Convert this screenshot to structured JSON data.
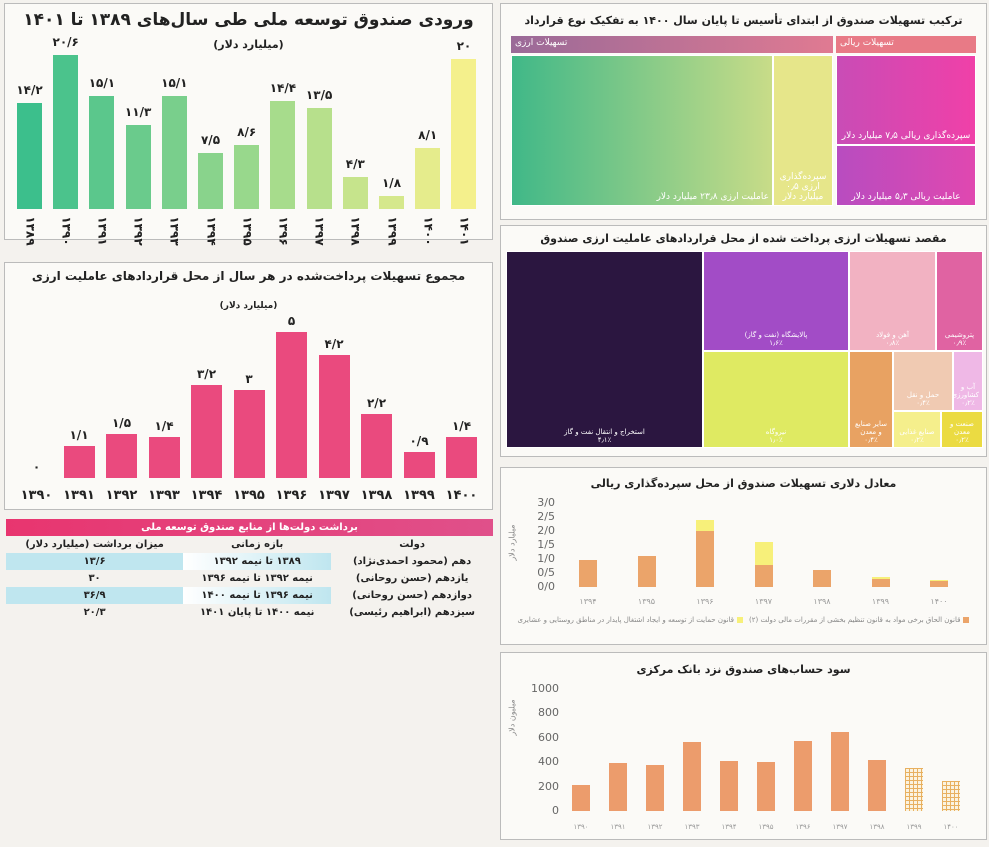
{
  "chart_data": [
    {
      "type": "bar",
      "title": "ورودی صندوق توسعه ملی طی سال‌های ۱۳۸۹ تا ۱۴۰۱",
      "subtitle": "(میلیارد دلار)",
      "categories": [
        "۱۳۸۹",
        "۱۳۹۰",
        "۱۳۹۱",
        "۱۳۹۲",
        "۱۳۹۳",
        "۱۳۹۴",
        "۱۳۹۵",
        "۱۳۹۶",
        "۱۳۹۷",
        "۱۳۹۸",
        "۱۳۹۹",
        "۱۴۰۰",
        "۱۴۰۱"
      ],
      "values": [
        14.2,
        20.6,
        15.1,
        11.3,
        15.1,
        7.5,
        8.6,
        14.4,
        13.5,
        4.3,
        1.8,
        8.1,
        20
      ],
      "labels": [
        "۱۴/۲",
        "۲۰/۶",
        "۱۵/۱",
        "۱۱/۳",
        "۱۵/۱",
        "۷/۵",
        "۸/۶",
        "۱۴/۴",
        "۱۳/۵",
        "۴/۳",
        "۱/۸",
        "۸/۱",
        "۲۰"
      ],
      "colors": [
        "#3cbf8c",
        "#f4f08c"
      ]
    },
    {
      "type": "bar",
      "title": "مجموع تسهیلات پرداخت‌شده در هر سال از محل قراردادهای عاملیت ارزی",
      "subtitle": "(میلیارد دلار)",
      "categories": [
        "۱۳۹۰",
        "۱۳۹۱",
        "۱۳۹۲",
        "۱۳۹۳",
        "۱۳۹۴",
        "۱۳۹۵",
        "۱۳۹۶",
        "۱۳۹۷",
        "۱۳۹۸",
        "۱۳۹۹",
        "۱۴۰۰"
      ],
      "values": [
        0,
        1.1,
        1.5,
        1.4,
        3.2,
        3,
        5,
        4.2,
        2.2,
        0.9,
        1.4
      ],
      "labels": [
        "۰",
        "۱/۱",
        "۱/۵",
        "۱/۴",
        "۳/۲",
        "۳",
        "۵",
        "۴/۲",
        "۲/۲",
        "۰/۹",
        "۱/۴"
      ],
      "color": "#ea4a7e"
    },
    {
      "type": "treemap",
      "title": "ترکیب تسهیلات صندوق از ابتدای تأسیس تا پایان سال ۱۴۰۰ به تفکیک نوع قرارداد",
      "groups": [
        {
          "name": "تسهیلات ارزی",
          "items": [
            {
              "label": "عاملیت ارزی ۲۳٫۸ میلیارد دلار",
              "value": 23.8
            },
            {
              "label": "سپرده‌گذاری ارزی ۰٫۵ میلیارد دلار",
              "value": 0.5
            }
          ]
        },
        {
          "name": "تسهیلات ریالی",
          "items": [
            {
              "label": "سپرده‌گذاری ریالی ۷٫۵ میلیارد دلار",
              "value": 7.5
            },
            {
              "label": "عاملیت ریالی ۵٫۳ میلیارد دلار",
              "value": 5.3
            }
          ]
        }
      ]
    },
    {
      "type": "treemap",
      "title": "مقصد تسهیلات ارزی پرداخت شده از محل قراردادهای عاملیت ارزی صندوق",
      "items": [
        {
          "label": "استخراج و انتقال نفت و گاز",
          "pct": "۴٫۱٪",
          "color": "#2b1640"
        },
        {
          "label": "پالایشگاه (نفت و گاز)",
          "pct": "۱٫۶٪",
          "color": "#a24cc6"
        },
        {
          "label": "نیروگاه",
          "pct": "۱٫۰٪",
          "color": "#dfea62"
        },
        {
          "label": "آهن و فولاد",
          "pct": "۰٫۸٪",
          "color": "#f2b2c2"
        },
        {
          "label": "پتروشیمی",
          "pct": "۰٫۹٪",
          "color": "#e063a2"
        },
        {
          "label": "سایر صنایع و معدن",
          "pct": "۰٫۴٪",
          "color": "#e8a262"
        },
        {
          "label": "حمل و نقل",
          "pct": "۰٫۴٪",
          "color": "#f0cab2"
        },
        {
          "label": "آب و کشاورزی",
          "pct": "۰٫۲٪",
          "color": "#efb8e6"
        },
        {
          "label": "صنایع غذایی",
          "pct": "۰٫۲٪",
          "color": "#f5ef8c"
        },
        {
          "label": "صنعت و معدن",
          "pct": "۰٫۲٪",
          "color": "#ebdb42"
        }
      ]
    },
    {
      "type": "bar",
      "stacked": true,
      "title": "معادل دلاری تسهیلات صندوق از محل سپرده‌گذاری ریالی",
      "ylabel": "میلیارد دلار",
      "ylim": [
        0,
        3
      ],
      "yticks": [
        "0/0",
        "0/5",
        "1/0",
        "1/5",
        "2/0",
        "2/5",
        "3/0"
      ],
      "categories": [
        "۱۳۹۴",
        "۱۳۹۵",
        "۱۳۹۶",
        "۱۳۹۷",
        "۱۳۹۸",
        "۱۳۹۹",
        "۱۴۰۰"
      ],
      "series": [
        {
          "name": "قانون الحاق برخی مواد به قانون تنظیم بخشی از مقررات مالی دولت (۲)",
          "color": "#eba46a",
          "values": [
            0.95,
            1.1,
            2.0,
            0.8,
            0.62,
            0.3,
            0.2
          ]
        },
        {
          "name": "قانون حمایت از توسعه و ایجاد اشتغال پایدار در مناطق روستایی و عشایری",
          "color": "#f7f07a",
          "values": [
            0,
            0,
            0.4,
            0.8,
            0,
            0.05,
            0.06
          ]
        }
      ]
    },
    {
      "type": "bar",
      "title": "سود حساب‌های صندوق نزد بانک مرکزی",
      "ylabel": "میلیون دلار",
      "ylim": [
        0,
        1000
      ],
      "yticks": [
        "0",
        "200",
        "400",
        "600",
        "800",
        "1000"
      ],
      "categories": [
        "۱۳۹۰",
        "۱۳۹۱",
        "۱۳۹۲",
        "۱۳۹۳",
        "۱۳۹۴",
        "۱۳۹۵",
        "۱۳۹۶",
        "۱۳۹۷",
        "۱۳۹۸",
        "۱۳۹۹",
        "۱۴۰۰"
      ],
      "values": [
        210,
        390,
        375,
        565,
        410,
        405,
        570,
        645,
        415,
        350,
        245
      ],
      "hatched": [
        false,
        false,
        false,
        false,
        false,
        false,
        false,
        false,
        false,
        true,
        true
      ],
      "color": "#ec9c6c"
    }
  ],
  "withdrawals": {
    "title": "برداشت دولت‌ها از منابع صندوق توسعه ملی",
    "headers": [
      "دولت",
      "بازه زمانی",
      "میزان برداشت (میلیارد دلار)"
    ],
    "rows": [
      [
        "دهم (محمود احمدی‌نژاد)",
        "۱۳۸۹ تا نیمه ۱۳۹۲",
        "۱۳/۶"
      ],
      [
        "یازدهم (حسن روحانی)",
        "نیمه ۱۳۹۲ تا نیمه ۱۳۹۶",
        "۳۰"
      ],
      [
        "دوازدهم (حسن روحانی)",
        "نیمه ۱۳۹۶ تا نیمه ۱۴۰۰",
        "۳۶/۹"
      ],
      [
        "سیزدهم (ابراهیم رئیسی)",
        "نیمه ۱۴۰۰ تا پایان ۱۴۰۱",
        "۲۰/۳"
      ]
    ],
    "header_color": "#e23f78",
    "stripe_color": "#bfe6ef"
  }
}
